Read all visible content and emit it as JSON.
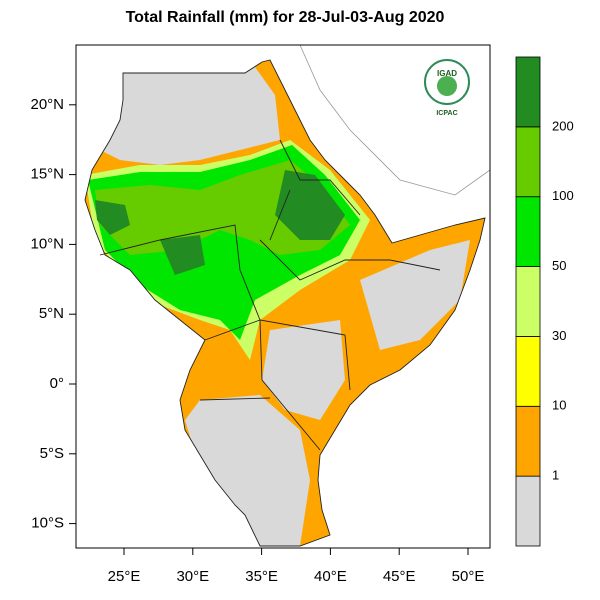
{
  "title": "Total Rainfall (mm) for 28-Jul-03-Aug 2020",
  "lon_ticks": [
    {
      "value": 25,
      "label": "25°E"
    },
    {
      "value": 30,
      "label": "30°E"
    },
    {
      "value": 35,
      "label": "35°E"
    },
    {
      "value": 40,
      "label": "40°E"
    },
    {
      "value": 45,
      "label": "45°E"
    },
    {
      "value": 50,
      "label": "50°E"
    }
  ],
  "lat_ticks": [
    {
      "value": 20,
      "label": "20°N"
    },
    {
      "value": 15,
      "label": "15°N"
    },
    {
      "value": 10,
      "label": "10°N"
    },
    {
      "value": 5,
      "label": "5°N"
    },
    {
      "value": 0,
      "label": "0°"
    },
    {
      "value": -5,
      "label": "5°S"
    },
    {
      "value": -10,
      "label": "10°S"
    }
  ],
  "colorbar": {
    "levels": [
      1,
      10,
      30,
      50,
      100,
      200
    ],
    "colors": [
      "#d9d9d9",
      "#ffa500",
      "#ffff00",
      "#ccff66",
      "#00e600",
      "#66cc00",
      "#228b22"
    ]
  },
  "logo": {
    "name": "IGAD",
    "org": "ICPAC"
  }
}
